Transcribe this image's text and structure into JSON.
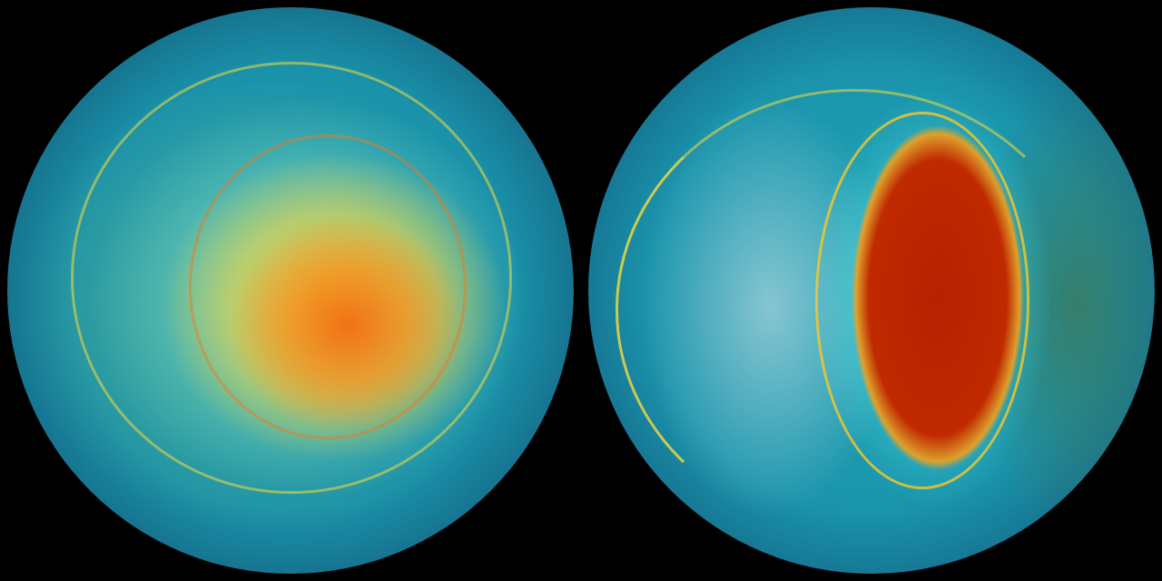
{
  "image": {
    "globes": [
      {
        "name": "left-globe",
        "hotspot_color": "#f07a18"
      },
      {
        "name": "right-globe",
        "hotspot_color": "#b82000"
      }
    ],
    "background_color": "#000000",
    "ocean_color": "#1a92aa"
  }
}
